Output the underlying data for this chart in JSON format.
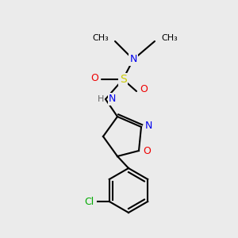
{
  "background_color": "#ebebeb",
  "figsize": [
    3.0,
    3.0
  ],
  "dpi": 100,
  "bond_color": "#000000",
  "bond_width": 1.5,
  "atom_colors": {
    "N": "#0000ee",
    "O": "#ee0000",
    "S": "#cccc00",
    "Cl": "#00aa00",
    "C": "#000000",
    "H": "#666666"
  },
  "font_size": 9,
  "font_size_small": 8
}
